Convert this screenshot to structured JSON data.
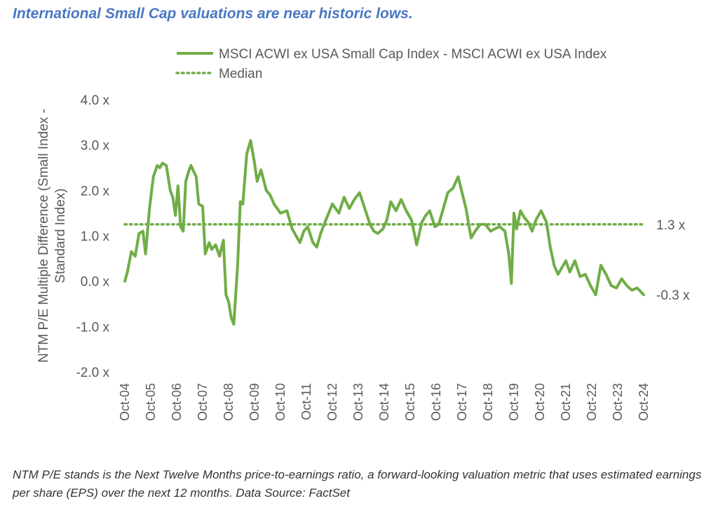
{
  "header": {
    "title": "International Small Cap valuations are near historic lows."
  },
  "footnote": {
    "text": "NTM P/E stands is the Next Twelve Months price-to-earnings ratio, a forward-looking valuation metric that uses estimated earnings per share (EPS) over the next 12 months. Data Source: FactSet"
  },
  "colors": {
    "line": "#70ad47",
    "text": "#595959",
    "title": "#4a78c2"
  },
  "chart_data": {
    "type": "line",
    "title": "",
    "xlabel": "",
    "ylabel": "NTM P/E Multiple Difference (Small Index - Standard Index)",
    "ylim": [
      -2.0,
      4.0
    ],
    "yticks": [
      "-2.0 x",
      "-1.0 x",
      "0.0 x",
      "1.0 x",
      "2.0 x",
      "3.0 x",
      "4.0 x"
    ],
    "xticks": [
      "Oct-04",
      "Oct-05",
      "Oct-06",
      "Oct-07",
      "Oct-08",
      "Oct-09",
      "Oct-10",
      "Oct-11",
      "Oct-12",
      "Oct-13",
      "Oct-14",
      "Oct-15",
      "Oct-16",
      "Oct-17",
      "Oct-18",
      "Oct-19",
      "Oct-20",
      "Oct-21",
      "Oct-22",
      "Oct-23",
      "Oct-24"
    ],
    "xlim": [
      2004.75,
      2024.75
    ],
    "grid": false,
    "legend": "top-center",
    "series": [
      {
        "name": "MSCI ACWI ex USA Small Cap Index - MSCI ACWI ex USA Index",
        "style": "solid",
        "x": [
          2004.75,
          2004.85,
          2005.0,
          2005.15,
          2005.3,
          2005.45,
          2005.55,
          2005.7,
          2005.85,
          2006.0,
          2006.1,
          2006.2,
          2006.35,
          2006.5,
          2006.6,
          2006.7,
          2006.8,
          2006.9,
          2007.0,
          2007.1,
          2007.2,
          2007.3,
          2007.5,
          2007.6,
          2007.75,
          2007.85,
          2008.0,
          2008.1,
          2008.25,
          2008.4,
          2008.55,
          2008.65,
          2008.75,
          2008.85,
          2008.95,
          2009.1,
          2009.2,
          2009.3,
          2009.45,
          2009.6,
          2009.75,
          2009.85,
          2010.0,
          2010.2,
          2010.35,
          2010.5,
          2010.75,
          2011.0,
          2011.2,
          2011.35,
          2011.5,
          2011.65,
          2011.8,
          2012.0,
          2012.15,
          2012.3,
          2012.5,
          2012.75,
          2013.0,
          2013.2,
          2013.4,
          2013.6,
          2013.8,
          2014.0,
          2014.2,
          2014.35,
          2014.5,
          2014.7,
          2014.85,
          2015.0,
          2015.2,
          2015.4,
          2015.6,
          2015.8,
          2016.0,
          2016.2,
          2016.35,
          2016.5,
          2016.7,
          2016.85,
          2017.0,
          2017.2,
          2017.4,
          2017.6,
          2017.75,
          2017.9,
          2018.1,
          2018.25,
          2018.45,
          2018.65,
          2018.85,
          2019.0,
          2019.2,
          2019.4,
          2019.55,
          2019.65,
          2019.75,
          2019.85,
          2020.0,
          2020.15,
          2020.3,
          2020.45,
          2020.6,
          2020.8,
          2021.0,
          2021.15,
          2021.3,
          2021.45,
          2021.6,
          2021.75,
          2021.9,
          2022.1,
          2022.3,
          2022.5,
          2022.7,
          2022.9,
          2023.1,
          2023.3,
          2023.5,
          2023.7,
          2023.9,
          2024.1,
          2024.3,
          2024.5,
          2024.75
        ],
        "y": [
          0.0,
          0.2,
          0.65,
          0.55,
          1.05,
          1.1,
          0.6,
          1.6,
          2.3,
          2.55,
          2.5,
          2.6,
          2.55,
          2.0,
          1.85,
          1.45,
          2.1,
          1.2,
          1.1,
          2.2,
          2.4,
          2.55,
          2.3,
          1.7,
          1.65,
          0.6,
          0.85,
          0.7,
          0.8,
          0.55,
          0.9,
          -0.3,
          -0.45,
          -0.8,
          -0.95,
          0.35,
          1.75,
          1.7,
          2.8,
          3.1,
          2.6,
          2.2,
          2.45,
          2.0,
          1.9,
          1.7,
          1.5,
          1.55,
          1.15,
          1.0,
          0.85,
          1.1,
          1.2,
          0.85,
          0.75,
          1.05,
          1.35,
          1.7,
          1.5,
          1.85,
          1.6,
          1.8,
          1.95,
          1.6,
          1.25,
          1.1,
          1.05,
          1.15,
          1.35,
          1.75,
          1.55,
          1.8,
          1.55,
          1.35,
          0.8,
          1.3,
          1.45,
          1.55,
          1.2,
          1.25,
          1.55,
          1.95,
          2.05,
          2.3,
          1.95,
          1.6,
          0.95,
          1.1,
          1.25,
          1.25,
          1.1,
          1.15,
          1.2,
          1.1,
          0.6,
          -0.05,
          1.5,
          1.15,
          1.55,
          1.4,
          1.3,
          1.1,
          1.35,
          1.55,
          1.3,
          0.75,
          0.35,
          0.15,
          0.3,
          0.45,
          0.2,
          0.45,
          0.1,
          0.15,
          -0.1,
          -0.3,
          0.35,
          0.15,
          -0.1,
          -0.15,
          0.05,
          -0.1,
          -0.2,
          -0.15,
          -0.3
        ]
      },
      {
        "name": "Median",
        "style": "dotted",
        "x": [
          2004.75,
          2024.75
        ],
        "y": [
          1.25,
          1.25
        ]
      }
    ],
    "annotations": [
      {
        "text": "1.3 x",
        "y": 1.25
      },
      {
        "text": "-0.3 x",
        "y": -0.3
      }
    ]
  }
}
